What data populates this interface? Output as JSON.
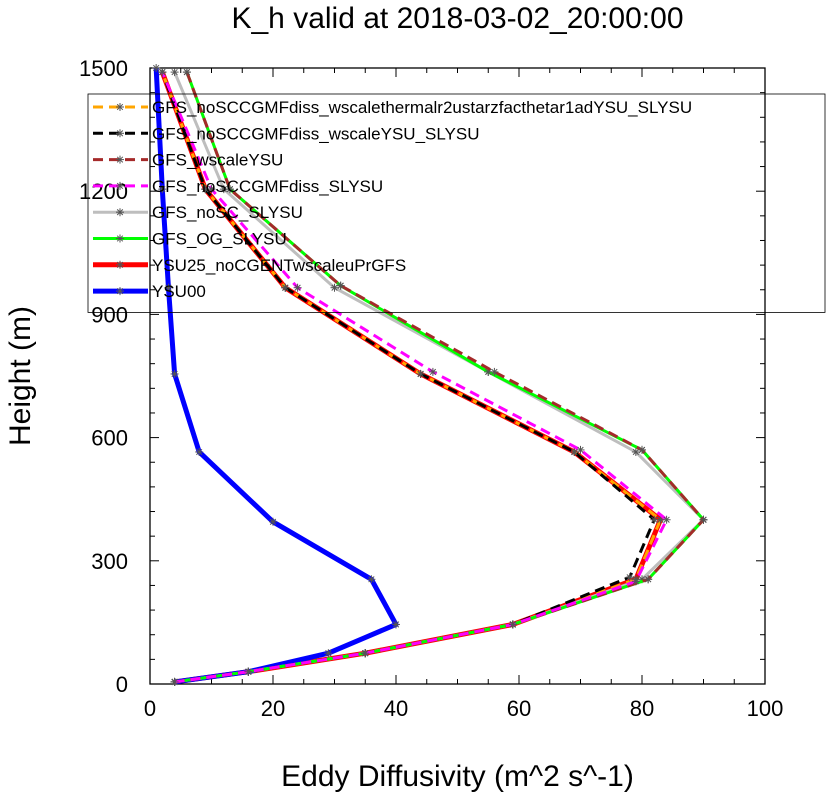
{
  "chart_data": {
    "type": "line",
    "title": "K_h valid at 2018-03-02_20:00:00",
    "xlabel": "Eddy Diffusivity (m^2 s^-1)",
    "ylabel": "Height (m)",
    "xlim": [
      0,
      100
    ],
    "ylim": [
      0,
      1500
    ],
    "x_ticks": [
      "0",
      "20",
      "40",
      "60",
      "80",
      "100"
    ],
    "y_ticks": [
      "0",
      "300",
      "600",
      "900",
      "1200",
      "1500"
    ],
    "grid": false,
    "legend_position": "top-left",
    "series": [
      {
        "name": "GFS_noSCCGMFdiss_wscalethermalr2ustarzfacthetar1adYSU_SLYSU",
        "color": "#ffa500",
        "dash": "dashed",
        "width": "thin",
        "x": [
          4,
          16,
          35,
          59,
          79,
          83,
          69,
          44,
          22,
          9,
          2
        ],
        "y": [
          5,
          30,
          75,
          145,
          255,
          400,
          565,
          755,
          965,
          1205,
          1490
        ]
      },
      {
        "name": "GFS_noSCCGMFdiss_wscaleYSU_SLYSU",
        "color": "#000000",
        "dash": "dashed",
        "width": "thin",
        "x": [
          4,
          16,
          35,
          59,
          78,
          82,
          69,
          44,
          22,
          9,
          2
        ],
        "y": [
          5,
          30,
          75,
          145,
          260,
          400,
          565,
          755,
          965,
          1205,
          1490
        ]
      },
      {
        "name": "GFS_wscaleYSU",
        "color": "#a52a2a",
        "dash": "dashed",
        "width": "thin",
        "x": [
          4,
          16,
          35,
          59,
          81,
          90,
          80,
          56,
          31,
          13,
          6
        ],
        "y": [
          5,
          30,
          75,
          145,
          255,
          400,
          570,
          760,
          970,
          1205,
          1490
        ]
      },
      {
        "name": "GFS_noSCCGMFdiss_SLYSU",
        "color": "#ff00ff",
        "dash": "dashed",
        "width": "thin",
        "x": [
          4,
          16,
          35,
          59,
          79,
          84,
          70,
          46,
          24,
          10,
          2
        ],
        "y": [
          5,
          30,
          75,
          145,
          250,
          400,
          570,
          760,
          965,
          1205,
          1490
        ]
      },
      {
        "name": "GFS_noSC_SLYSU",
        "color": "#bebebe",
        "dash": "solid",
        "width": "thin",
        "x": [
          4,
          16,
          35,
          59,
          80,
          90,
          79,
          55,
          30,
          12,
          4
        ],
        "y": [
          5,
          30,
          75,
          145,
          255,
          400,
          565,
          760,
          965,
          1205,
          1490
        ]
      },
      {
        "name": "GFS_OG_SLYSU",
        "color": "#00ff00",
        "dash": "solid",
        "width": "thin",
        "x": [
          4,
          16,
          35,
          59,
          81,
          90,
          80,
          55,
          31,
          13,
          6
        ],
        "y": [
          5,
          30,
          75,
          145,
          255,
          400,
          570,
          760,
          970,
          1205,
          1490
        ]
      },
      {
        "name": "YSU25_noCGENTwscaleuPrGFS",
        "color": "#ff0000",
        "dash": "solid",
        "width": "thick",
        "x": [
          4,
          16,
          35,
          59,
          79,
          83,
          69,
          44,
          22,
          9,
          2
        ],
        "y": [
          5,
          30,
          75,
          145,
          255,
          400,
          565,
          755,
          965,
          1205,
          1490
        ]
      },
      {
        "name": "YSU00",
        "color": "#0000ff",
        "dash": "solid",
        "width": "thick",
        "x": [
          4,
          16,
          29,
          40,
          36,
          20,
          8,
          4,
          3,
          2,
          1
        ],
        "y": [
          5,
          30,
          75,
          145,
          255,
          395,
          565,
          755,
          965,
          1205,
          1500
        ]
      }
    ]
  }
}
